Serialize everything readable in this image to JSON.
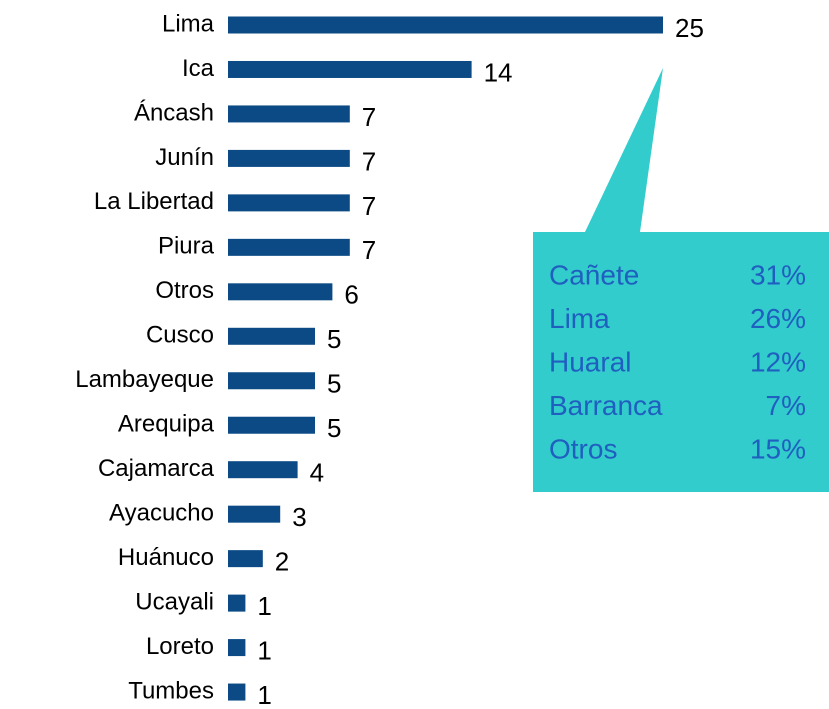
{
  "chart_data": {
    "type": "bar",
    "categories": [
      "Lima",
      "Ica",
      "Áncash",
      "Junín",
      "La Libertad",
      "Piura",
      "Otros",
      "Cusco",
      "Lambayeque",
      "Arequipa",
      "Cajamarca",
      "Ayacucho",
      "Huánuco",
      "Ucayali",
      "Loreto",
      "Tumbes"
    ],
    "values": [
      25,
      14,
      7,
      7,
      7,
      7,
      6,
      5,
      5,
      5,
      4,
      3,
      2,
      1,
      1,
      1
    ],
    "color": "#0b4a85",
    "callout": {
      "color": "#33cccc",
      "text_color": "#1f5fbf",
      "names": [
        "Cañete",
        "Lima",
        "Huaral",
        "Barranca",
        "Otros"
      ],
      "labels": [
        "31%",
        "26%",
        "12%",
        "7%",
        "15%"
      ]
    }
  }
}
